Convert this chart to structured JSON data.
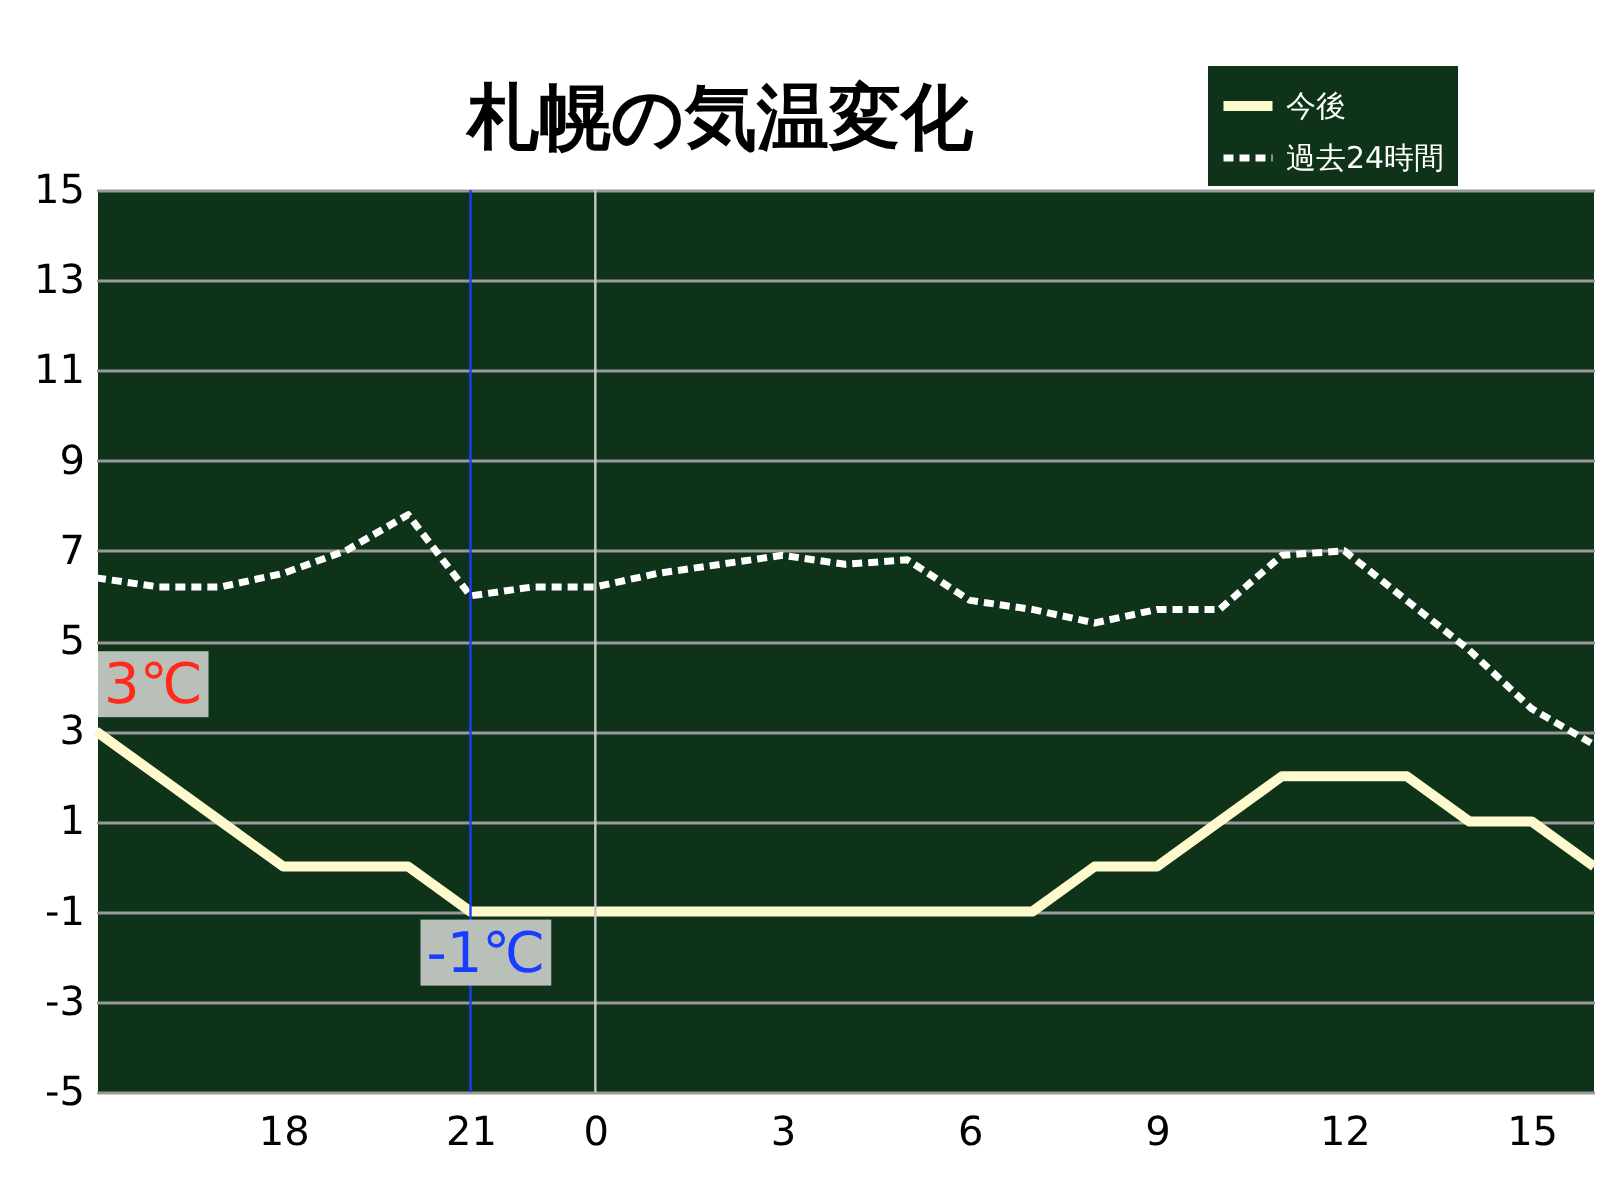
{
  "chart_data": {
    "type": "line",
    "title": "札幌の気温変化",
    "categories": [
      null,
      null,
      null,
      "18",
      null,
      null,
      "21",
      null,
      "0",
      null,
      null,
      "3",
      null,
      null,
      "6",
      null,
      null,
      "9",
      null,
      null,
      "12",
      null,
      null,
      "15",
      null
    ],
    "ylim": [
      -5,
      15
    ],
    "yticks": [
      -5,
      -3,
      -1,
      1,
      3,
      5,
      7,
      9,
      11,
      13,
      15
    ],
    "series": [
      {
        "name": "今後",
        "color": "#fffacd",
        "line_style": "solid",
        "values": [
          3,
          2,
          1,
          0,
          0,
          0,
          -1,
          -1,
          -1,
          -1,
          -1,
          -1,
          -1,
          -1,
          -1,
          -1,
          0,
          0,
          1,
          2,
          2,
          2,
          1,
          1,
          0
        ]
      },
      {
        "name": "過去24時間",
        "color": "#ffffff",
        "line_style": "dashed",
        "values": [
          6.4,
          6.2,
          6.2,
          6.5,
          7.0,
          7.8,
          6.0,
          6.2,
          6.2,
          6.5,
          6.7,
          6.9,
          6.7,
          6.8,
          5.9,
          5.7,
          5.4,
          5.7,
          5.7,
          6.9,
          7.0,
          5.9,
          4.8,
          3.5,
          2.7
        ]
      }
    ],
    "ref_lines": [
      {
        "axis": "x",
        "value": "21",
        "color": "#1a3cff"
      },
      {
        "axis": "x",
        "value": "0",
        "color": "#c8c8c8"
      }
    ],
    "annotations": [
      "3℃",
      {
        "text": "-1℃",
        "x": "21",
        "y": -1
      }
    ],
    "grid": "y",
    "legend": "top right",
    "marker": "none"
  }
}
